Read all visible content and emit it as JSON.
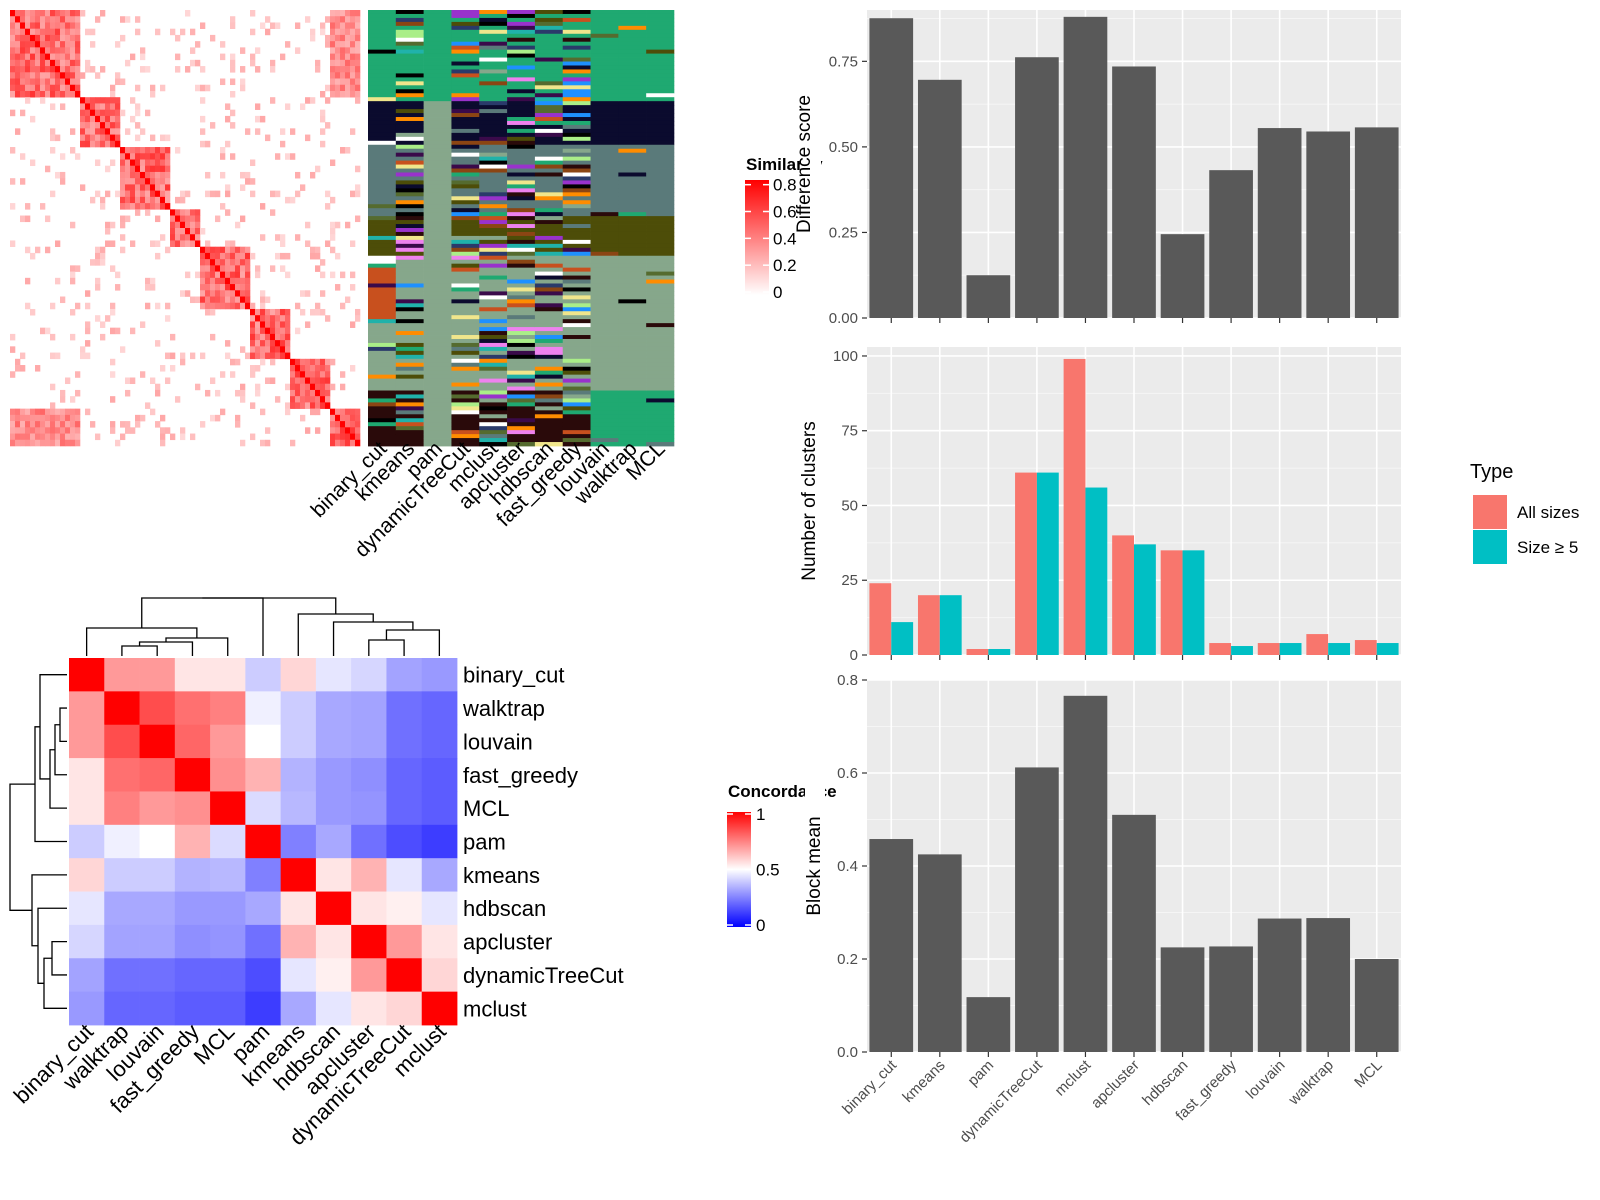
{
  "similarity_panel": {
    "methods": [
      "binary_cut",
      "kmeans",
      "pam",
      "dynamicTreeCut",
      "mclust",
      "apcluster",
      "hdbscan",
      "fast_greedy",
      "louvain",
      "walktrap",
      "MCL"
    ],
    "legend": {
      "title": "Similarity",
      "ticks": [
        "0.8",
        "0.6",
        "0.4",
        "0.2",
        "0"
      ]
    },
    "gradient_colors": [
      "#ffffff",
      "#ff0000"
    ]
  },
  "concordance_panel": {
    "legend": {
      "title": "Concordance",
      "ticks": [
        "1",
        "0.5",
        "0"
      ]
    },
    "gradient_colors": [
      "#0000ff",
      "#ffffff",
      "#ff0000"
    ]
  },
  "chart_data": [
    {
      "type": "heatmap",
      "title": "",
      "rows": [
        "binary_cut",
        "walktrap",
        "louvain",
        "fast_greedy",
        "MCL",
        "pam",
        "kmeans",
        "hdbscan",
        "apcluster",
        "dynamicTreeCut",
        "mclust"
      ],
      "cols": [
        "binary_cut",
        "walktrap",
        "louvain",
        "fast_greedy",
        "MCL",
        "pam",
        "kmeans",
        "hdbscan",
        "apcluster",
        "dynamicTreeCut",
        "mclust"
      ],
      "values": [
        [
          1.0,
          0.7,
          0.7,
          0.55,
          0.55,
          0.4,
          0.58,
          0.45,
          0.42,
          0.32,
          0.3
        ],
        [
          0.7,
          1.0,
          0.85,
          0.78,
          0.75,
          0.47,
          0.4,
          0.33,
          0.32,
          0.22,
          0.2
        ],
        [
          0.7,
          0.85,
          1.0,
          0.8,
          0.7,
          0.5,
          0.4,
          0.33,
          0.32,
          0.22,
          0.2
        ],
        [
          0.55,
          0.78,
          0.8,
          1.0,
          0.72,
          0.65,
          0.35,
          0.3,
          0.28,
          0.2,
          0.18
        ],
        [
          0.55,
          0.75,
          0.7,
          0.72,
          1.0,
          0.43,
          0.36,
          0.3,
          0.29,
          0.2,
          0.18
        ],
        [
          0.4,
          0.47,
          0.5,
          0.65,
          0.43,
          1.0,
          0.25,
          0.33,
          0.22,
          0.15,
          0.12
        ],
        [
          0.58,
          0.4,
          0.4,
          0.35,
          0.36,
          0.25,
          1.0,
          0.55,
          0.65,
          0.45,
          0.33
        ],
        [
          0.45,
          0.33,
          0.33,
          0.3,
          0.3,
          0.33,
          0.55,
          1.0,
          0.55,
          0.53,
          0.45
        ],
        [
          0.42,
          0.32,
          0.32,
          0.28,
          0.29,
          0.22,
          0.65,
          0.55,
          1.0,
          0.7,
          0.55
        ],
        [
          0.32,
          0.22,
          0.22,
          0.2,
          0.2,
          0.15,
          0.45,
          0.53,
          0.7,
          1.0,
          0.58
        ],
        [
          0.3,
          0.2,
          0.2,
          0.18,
          0.18,
          0.12,
          0.33,
          0.45,
          0.55,
          0.58,
          1.0
        ]
      ]
    },
    {
      "type": "bar",
      "title": "",
      "xlabel": "",
      "ylabel": "Difference score",
      "ylim": [
        0,
        0.9
      ],
      "yticks": [
        "0.00",
        "0.25",
        "0.50",
        "0.75"
      ],
      "categories": [
        "binary_cut",
        "kmeans",
        "pam",
        "dynamicTreeCut",
        "mclust",
        "apcluster",
        "hdbscan",
        "fast_greedy",
        "louvain",
        "walktrap",
        "MCL"
      ],
      "series": [
        {
          "values": [
            0.876,
            0.696,
            0.125,
            0.762,
            0.88,
            0.735,
            0.245,
            0.432,
            0.555,
            0.545,
            0.557
          ]
        }
      ]
    },
    {
      "type": "bar",
      "title": "",
      "xlabel": "",
      "ylabel": "Number of clusters",
      "ylim": [
        0,
        103
      ],
      "yticks": [
        "0",
        "25",
        "50",
        "75",
        "100"
      ],
      "legend": {
        "title": "Type",
        "position": "right"
      },
      "categories": [
        "binary_cut",
        "kmeans",
        "pam",
        "dynamicTreeCut",
        "mclust",
        "apcluster",
        "hdbscan",
        "fast_greedy",
        "louvain",
        "walktrap",
        "MCL"
      ],
      "series": [
        {
          "name": "All sizes",
          "color": "#F8766D",
          "values": [
            24,
            20,
            2,
            61,
            99,
            40,
            35,
            4,
            4,
            7,
            5
          ]
        },
        {
          "name": "Size ≥ 5",
          "color": "#00BFC4",
          "values": [
            11,
            20,
            2,
            61,
            56,
            37,
            35,
            3,
            4,
            4,
            4
          ]
        }
      ]
    },
    {
      "type": "bar",
      "title": "",
      "xlabel": "",
      "ylabel": "Block mean",
      "ylim": [
        0,
        0.8
      ],
      "yticks": [
        "0.0",
        "0.2",
        "0.4",
        "0.6",
        "0.8"
      ],
      "categories": [
        "binary_cut",
        "kmeans",
        "pam",
        "dynamicTreeCut",
        "mclust",
        "apcluster",
        "hdbscan",
        "fast_greedy",
        "louvain",
        "walktrap",
        "MCL"
      ],
      "series": [
        {
          "values": [
            0.458,
            0.425,
            0.118,
            0.612,
            0.766,
            0.51,
            0.225,
            0.227,
            0.287,
            0.288,
            0.2
          ]
        }
      ]
    }
  ]
}
